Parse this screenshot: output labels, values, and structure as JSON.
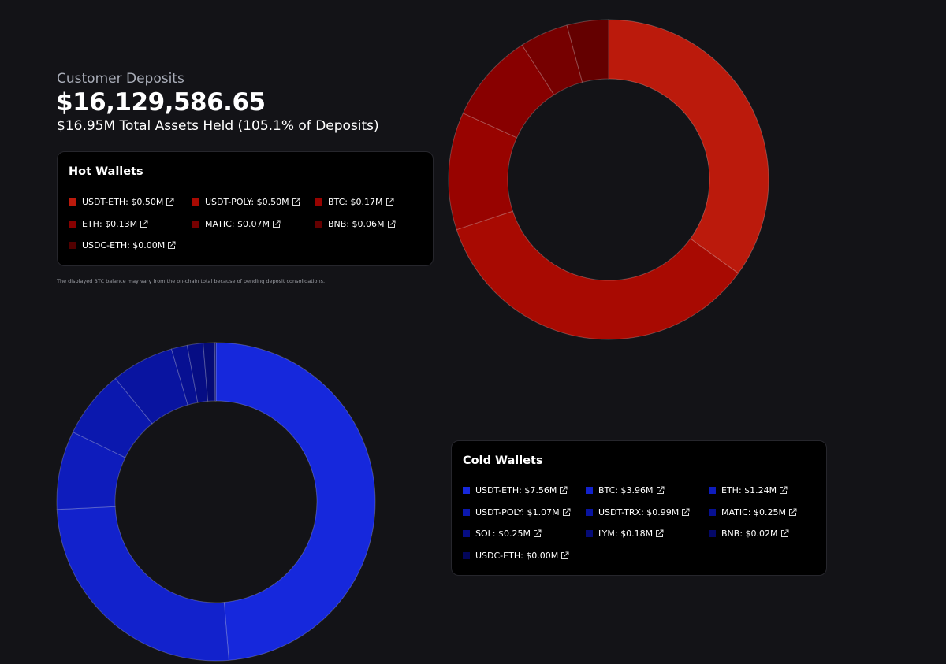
{
  "header": {
    "title": "Customer Deposits",
    "amount": "$16,129,586.65",
    "subtitle": "$16.95M Total Assets Held (105.1% of Deposits)"
  },
  "note": "The displayed BTC balance may vary from the on-chain total because of pending deposit consolidations.",
  "chart_data": [
    {
      "type": "donut",
      "title": "Hot Wallets",
      "values": [
        0.5,
        0.5,
        0.17,
        0.13,
        0.07,
        0.06,
        0.0
      ],
      "value_labels": [
        "USDT-ETH: $0.50M",
        "USDT-POLY: $0.50M",
        "BTC: $0.17M",
        "ETH: $0.13M",
        "MATIC: $0.07M",
        "BNB: $0.06M",
        "USDC-ETH: $0.00M"
      ],
      "colors": [
        "#bb1a0c",
        "#a80a02",
        "#980300",
        "#880000",
        "#760000",
        "#640000",
        "#520000"
      ]
    },
    {
      "type": "donut",
      "title": "Cold Wallets",
      "values": [
        7.56,
        3.96,
        1.24,
        1.07,
        0.99,
        0.25,
        0.25,
        0.18,
        0.02,
        0.0
      ],
      "value_labels": [
        "USDT-ETH: $7.56M",
        "BTC: $3.96M",
        "ETH: $1.24M",
        "USDT-POLY: $1.07M",
        "USDT-TRX: $0.99M",
        "MATIC: $0.25M",
        "SOL: $0.25M",
        "LYM: $0.18M",
        "BNB: $0.02M",
        "USDC-ETH: $0.00M"
      ],
      "colors": [
        "#1628dc",
        "#1222cc",
        "#0e1cbc",
        "#0b18ae",
        "#0914a0",
        "#071092",
        "#060d84",
        "#050b76",
        "#040868",
        "#03065a"
      ]
    }
  ]
}
